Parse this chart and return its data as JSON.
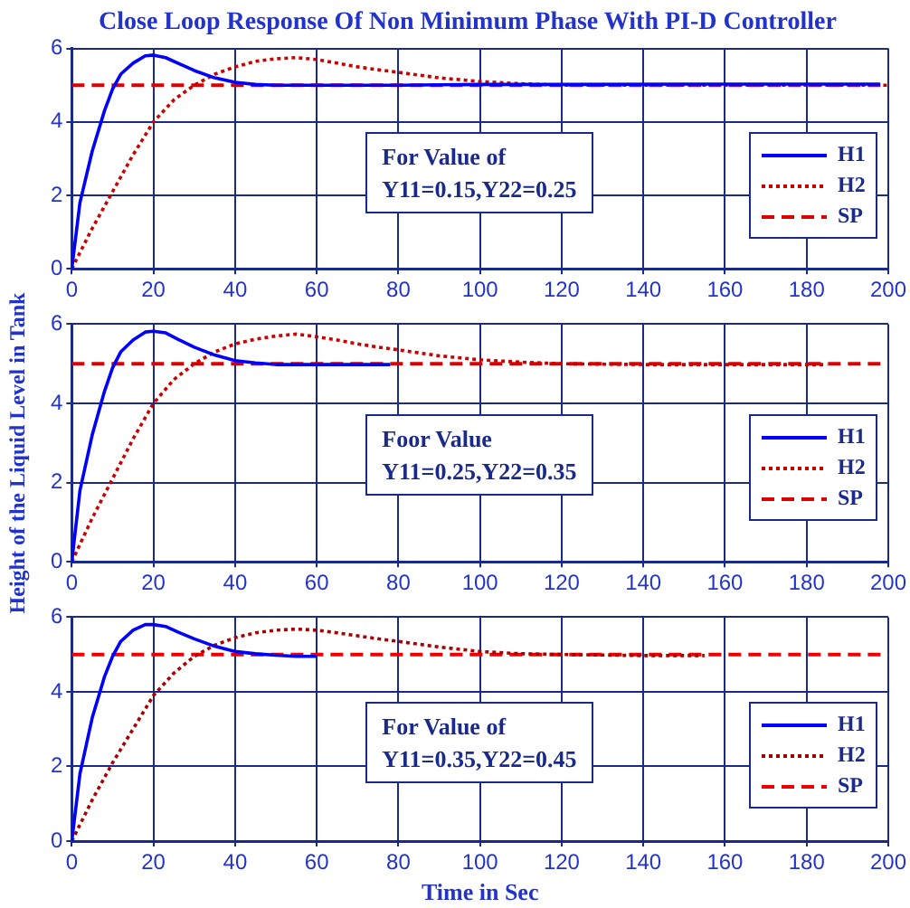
{
  "chart_data": [
    {
      "type": "line",
      "title": "Close Loop Response Of Non Minimum Phase With PI-D Controller",
      "xlim": [
        0,
        200
      ],
      "ylim": [
        0,
        6
      ],
      "xticks": [
        0,
        20,
        40,
        60,
        80,
        100,
        120,
        140,
        160,
        180,
        200
      ],
      "yticks": [
        0,
        2,
        4,
        6
      ],
      "grid": true,
      "legend": "right",
      "marker": "none",
      "annotations": [
        "For Value of\nY11=0.15,Y22=0.25"
      ],
      "series": [
        {
          "name": "H1",
          "color": "#0000ff",
          "line_style": "solid",
          "x": [
            0,
            2,
            5,
            8,
            10,
            12,
            15,
            18,
            20,
            23,
            26,
            30,
            35,
            40,
            45,
            50,
            60,
            80,
            100,
            120,
            160,
            198
          ],
          "values": [
            0,
            1.8,
            3.2,
            4.3,
            4.9,
            5.3,
            5.6,
            5.8,
            5.82,
            5.75,
            5.6,
            5.4,
            5.2,
            5.08,
            5.02,
            5,
            5,
            5,
            5.02,
            5.02,
            5.03,
            5.03
          ]
        },
        {
          "name": "H2",
          "color": "#cc0000",
          "line_style": "dotted",
          "x": [
            0,
            5,
            10,
            15,
            20,
            25,
            30,
            35,
            40,
            45,
            50,
            55,
            60,
            65,
            70,
            75,
            80,
            90,
            100,
            110,
            120,
            140,
            200
          ],
          "values": [
            0,
            1.1,
            2.1,
            3.1,
            4,
            4.6,
            5,
            5.3,
            5.5,
            5.65,
            5.72,
            5.75,
            5.7,
            5.6,
            5.5,
            5.42,
            5.35,
            5.2,
            5.1,
            5.04,
            5,
            5,
            5
          ]
        },
        {
          "name": "SP",
          "color": "#dd0000",
          "line_style": "dashed",
          "x": [
            0,
            200
          ],
          "values": [
            5,
            5
          ]
        }
      ]
    },
    {
      "type": "line",
      "ylabel": "Height of the Liquid Level in Tank",
      "xlim": [
        0,
        200
      ],
      "ylim": [
        0,
        6
      ],
      "xticks": [
        0,
        20,
        40,
        60,
        80,
        100,
        120,
        140,
        160,
        180,
        200
      ],
      "yticks": [
        0,
        2,
        4,
        6
      ],
      "grid": true,
      "legend": "right",
      "marker": "none",
      "annotations": [
        "Foor Value\nY11=0.25,Y22=0.35"
      ],
      "series": [
        {
          "name": "H1",
          "color": "#0000ff",
          "line_style": "solid",
          "x": [
            0,
            2,
            5,
            8,
            10,
            12,
            15,
            18,
            20,
            23,
            26,
            30,
            35,
            40,
            45,
            50,
            60,
            78
          ],
          "values": [
            0,
            1.8,
            3.2,
            4.3,
            4.9,
            5.3,
            5.6,
            5.8,
            5.82,
            5.78,
            5.62,
            5.42,
            5.22,
            5.08,
            5.02,
            4.98,
            4.98,
            4.98
          ]
        },
        {
          "name": "H2",
          "color": "#cc0000",
          "line_style": "dotted",
          "x": [
            0,
            5,
            10,
            15,
            20,
            25,
            30,
            35,
            40,
            45,
            50,
            55,
            60,
            65,
            70,
            75,
            80,
            90,
            100,
            110,
            120,
            140,
            185
          ],
          "values": [
            0,
            1.1,
            2.1,
            3.1,
            4,
            4.6,
            5,
            5.3,
            5.5,
            5.62,
            5.7,
            5.75,
            5.68,
            5.6,
            5.5,
            5.42,
            5.35,
            5.2,
            5.1,
            5.04,
            5,
            4.98,
            4.98
          ]
        },
        {
          "name": "SP",
          "color": "#dd0000",
          "line_style": "dashed",
          "x": [
            0,
            200
          ],
          "values": [
            5,
            5
          ]
        }
      ]
    },
    {
      "type": "line",
      "xlabel": "Time in Sec",
      "xlim": [
        0,
        200
      ],
      "ylim": [
        0,
        6
      ],
      "xticks": [
        0,
        20,
        40,
        60,
        80,
        100,
        120,
        140,
        160,
        180,
        200
      ],
      "yticks": [
        0,
        2,
        4,
        6
      ],
      "grid": true,
      "legend": "right",
      "marker": "none",
      "annotations": [
        "For Value of\nY11=0.35,Y22=0.45"
      ],
      "series": [
        {
          "name": "H1",
          "color": "#0000ff",
          "line_style": "solid",
          "x": [
            0,
            2,
            5,
            8,
            10,
            12,
            15,
            18,
            20,
            23,
            26,
            30,
            35,
            40,
            45,
            50,
            55,
            60
          ],
          "values": [
            0,
            1.8,
            3.3,
            4.4,
            4.95,
            5.35,
            5.65,
            5.8,
            5.8,
            5.75,
            5.6,
            5.42,
            5.22,
            5.08,
            5.02,
            4.98,
            4.95,
            4.95
          ]
        },
        {
          "name": "H2",
          "color": "#aa0000",
          "line_style": "dotted",
          "x": [
            0,
            5,
            10,
            15,
            20,
            25,
            30,
            35,
            40,
            45,
            50,
            55,
            60,
            65,
            70,
            75,
            80,
            90,
            100,
            110,
            120,
            140,
            155
          ],
          "values": [
            0,
            1.1,
            2.1,
            3,
            3.9,
            4.5,
            4.95,
            5.25,
            5.45,
            5.58,
            5.65,
            5.68,
            5.65,
            5.58,
            5.5,
            5.42,
            5.35,
            5.2,
            5.08,
            5.02,
            5,
            4.97,
            4.97
          ]
        },
        {
          "name": "SP",
          "color": "#ee0000",
          "line_style": "dashed",
          "x": [
            0,
            200
          ],
          "values": [
            5,
            5
          ]
        }
      ]
    }
  ]
}
